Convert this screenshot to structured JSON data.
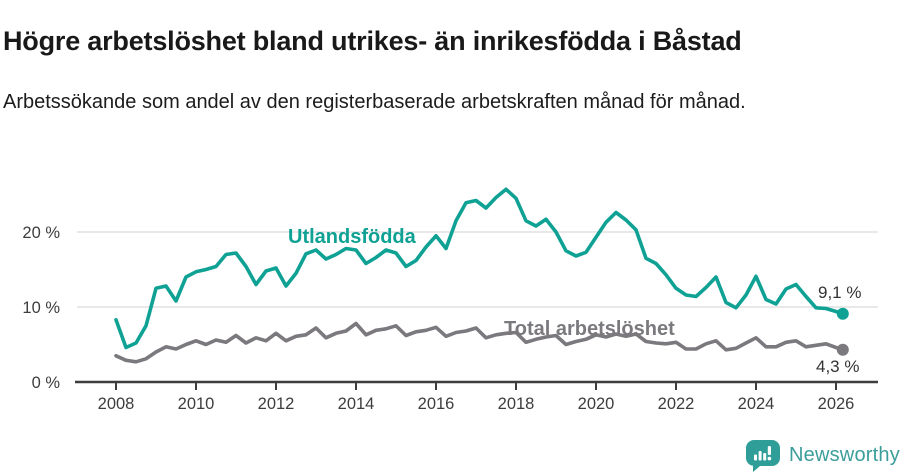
{
  "header": {
    "title": "Högre arbetslöshet bland utrikes- än inrikesfödda i Båstad",
    "subtitle": "Arbetssökande som andel av den registerbaserade arbetskraften månad för månad."
  },
  "footer": {
    "brand": "Newsworthy",
    "brand_color": "#3b9e9a"
  },
  "chart_data": {
    "type": "line",
    "title": "Högre arbetslöshet bland utrikes- än inrikesfödda i Båstad",
    "xlabel": "",
    "ylabel": "Arbetssökande som andel av den registerbaserade arbetskraften",
    "x_range": [
      2007.8,
      2026.4
    ],
    "ylim": [
      0,
      27
    ],
    "grid": "horizontal",
    "legend_position": "inline-labels",
    "x_ticks": [
      "2008",
      "2010",
      "2012",
      "2014",
      "2016",
      "2018",
      "2020",
      "2022",
      "2024",
      "2026"
    ],
    "y_ticks": [
      {
        "value": 0,
        "label": "0 %"
      },
      {
        "value": 10,
        "label": "10 %"
      },
      {
        "value": 20,
        "label": "20 %"
      }
    ],
    "colors": {
      "grid": "#d9d9d9",
      "axis": "#3d3d3d",
      "tick_text": "#3d3d3d"
    },
    "series": [
      {
        "name": "Utlandsfödda",
        "color": "#0fa294",
        "end_label": "9,1 %",
        "points": [
          [
            2008.0,
            8.3
          ],
          [
            2008.25,
            4.6
          ],
          [
            2008.5,
            5.2
          ],
          [
            2008.75,
            7.5
          ],
          [
            2009.0,
            12.5
          ],
          [
            2009.25,
            12.8
          ],
          [
            2009.5,
            10.8
          ],
          [
            2009.75,
            14.0
          ],
          [
            2010.0,
            14.7
          ],
          [
            2010.25,
            15.0
          ],
          [
            2010.5,
            15.4
          ],
          [
            2010.75,
            17.0
          ],
          [
            2011.0,
            17.2
          ],
          [
            2011.25,
            15.4
          ],
          [
            2011.5,
            13.0
          ],
          [
            2011.75,
            14.8
          ],
          [
            2012.0,
            15.2
          ],
          [
            2012.25,
            12.8
          ],
          [
            2012.5,
            14.5
          ],
          [
            2012.75,
            17.1
          ],
          [
            2013.0,
            17.6
          ],
          [
            2013.25,
            16.4
          ],
          [
            2013.5,
            17.0
          ],
          [
            2013.75,
            17.8
          ],
          [
            2014.0,
            17.6
          ],
          [
            2014.25,
            15.8
          ],
          [
            2014.5,
            16.6
          ],
          [
            2014.75,
            17.6
          ],
          [
            2015.0,
            17.2
          ],
          [
            2015.25,
            15.4
          ],
          [
            2015.5,
            16.2
          ],
          [
            2015.75,
            18.0
          ],
          [
            2016.0,
            19.5
          ],
          [
            2016.25,
            17.8
          ],
          [
            2016.5,
            21.5
          ],
          [
            2016.75,
            23.9
          ],
          [
            2017.0,
            24.2
          ],
          [
            2017.25,
            23.2
          ],
          [
            2017.5,
            24.6
          ],
          [
            2017.75,
            25.7
          ],
          [
            2018.0,
            24.5
          ],
          [
            2018.25,
            21.5
          ],
          [
            2018.5,
            20.8
          ],
          [
            2018.75,
            21.7
          ],
          [
            2019.0,
            20.0
          ],
          [
            2019.25,
            17.5
          ],
          [
            2019.5,
            16.8
          ],
          [
            2019.75,
            17.3
          ],
          [
            2020.0,
            19.3
          ],
          [
            2020.25,
            21.3
          ],
          [
            2020.5,
            22.6
          ],
          [
            2020.75,
            21.6
          ],
          [
            2021.0,
            20.3
          ],
          [
            2021.25,
            16.5
          ],
          [
            2021.5,
            15.8
          ],
          [
            2021.75,
            14.3
          ],
          [
            2022.0,
            12.5
          ],
          [
            2022.25,
            11.6
          ],
          [
            2022.5,
            11.4
          ],
          [
            2022.75,
            12.6
          ],
          [
            2023.0,
            14.0
          ],
          [
            2023.25,
            10.6
          ],
          [
            2023.5,
            9.9
          ],
          [
            2023.75,
            11.6
          ],
          [
            2024.0,
            14.1
          ],
          [
            2024.25,
            11.0
          ],
          [
            2024.5,
            10.4
          ],
          [
            2024.75,
            12.4
          ],
          [
            2025.0,
            13.0
          ],
          [
            2025.25,
            11.4
          ],
          [
            2025.5,
            9.9
          ],
          [
            2025.75,
            9.8
          ],
          [
            2026.0,
            9.4
          ],
          [
            2026.17,
            9.1
          ]
        ]
      },
      {
        "name": "Total arbetslöshet",
        "color": "#7b797e",
        "end_label": "4,3 %",
        "points": [
          [
            2008.0,
            3.5
          ],
          [
            2008.25,
            2.9
          ],
          [
            2008.5,
            2.7
          ],
          [
            2008.75,
            3.1
          ],
          [
            2009.0,
            4.0
          ],
          [
            2009.25,
            4.7
          ],
          [
            2009.5,
            4.4
          ],
          [
            2009.75,
            5.0
          ],
          [
            2010.0,
            5.5
          ],
          [
            2010.25,
            5.0
          ],
          [
            2010.5,
            5.6
          ],
          [
            2010.75,
            5.3
          ],
          [
            2011.0,
            6.2
          ],
          [
            2011.25,
            5.2
          ],
          [
            2011.5,
            5.9
          ],
          [
            2011.75,
            5.5
          ],
          [
            2012.0,
            6.5
          ],
          [
            2012.25,
            5.5
          ],
          [
            2012.5,
            6.1
          ],
          [
            2012.75,
            6.3
          ],
          [
            2013.0,
            7.2
          ],
          [
            2013.25,
            5.9
          ],
          [
            2013.5,
            6.5
          ],
          [
            2013.75,
            6.8
          ],
          [
            2014.0,
            7.8
          ],
          [
            2014.25,
            6.3
          ],
          [
            2014.5,
            6.9
          ],
          [
            2014.75,
            7.1
          ],
          [
            2015.0,
            7.5
          ],
          [
            2015.25,
            6.2
          ],
          [
            2015.5,
            6.7
          ],
          [
            2015.75,
            6.9
          ],
          [
            2016.0,
            7.3
          ],
          [
            2016.25,
            6.1
          ],
          [
            2016.5,
            6.6
          ],
          [
            2016.75,
            6.8
          ],
          [
            2017.0,
            7.2
          ],
          [
            2017.25,
            5.9
          ],
          [
            2017.5,
            6.3
          ],
          [
            2017.75,
            6.5
          ],
          [
            2018.0,
            6.6
          ],
          [
            2018.25,
            5.3
          ],
          [
            2018.5,
            5.7
          ],
          [
            2018.75,
            6.0
          ],
          [
            2019.0,
            6.2
          ],
          [
            2019.25,
            5.0
          ],
          [
            2019.5,
            5.4
          ],
          [
            2019.75,
            5.7
          ],
          [
            2020.0,
            6.3
          ],
          [
            2020.25,
            6.0
          ],
          [
            2020.5,
            6.4
          ],
          [
            2020.75,
            6.1
          ],
          [
            2021.0,
            6.4
          ],
          [
            2021.25,
            5.4
          ],
          [
            2021.5,
            5.2
          ],
          [
            2021.75,
            5.1
          ],
          [
            2022.0,
            5.3
          ],
          [
            2022.25,
            4.4
          ],
          [
            2022.5,
            4.4
          ],
          [
            2022.75,
            5.1
          ],
          [
            2023.0,
            5.5
          ],
          [
            2023.25,
            4.3
          ],
          [
            2023.5,
            4.5
          ],
          [
            2023.75,
            5.2
          ],
          [
            2024.0,
            5.9
          ],
          [
            2024.25,
            4.7
          ],
          [
            2024.5,
            4.7
          ],
          [
            2024.75,
            5.3
          ],
          [
            2025.0,
            5.5
          ],
          [
            2025.25,
            4.7
          ],
          [
            2025.5,
            4.9
          ],
          [
            2025.75,
            5.1
          ],
          [
            2026.0,
            4.6
          ],
          [
            2026.17,
            4.3
          ]
        ]
      }
    ]
  }
}
